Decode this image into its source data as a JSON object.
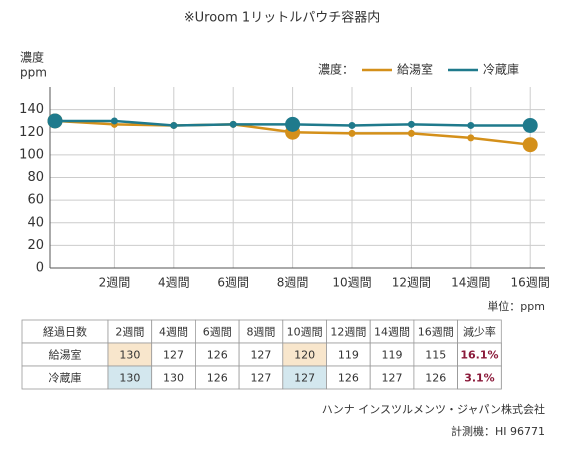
{
  "chart_data": {
    "type": "line",
    "title": "※Uroom 1リットルパウチ容器内",
    "y_label": [
      "濃度",
      "ppm"
    ],
    "legend_title": "濃度：",
    "categories": [
      null,
      "2週間",
      "4週間",
      "6週間",
      "8週間",
      "10週間",
      "12週間",
      "14週間",
      "16週間"
    ],
    "series": [
      {
        "name": "給湯室",
        "color": "#d4901a",
        "values": [
          130,
          127,
          126,
          127,
          120,
          119,
          119,
          115,
          109
        ],
        "reduction": "16.1%",
        "highlight_color": "#f8e6cc"
      },
      {
        "name": "冷蔵庫",
        "color": "#1f7a8c",
        "values": [
          130,
          130,
          126,
          127,
          127,
          126,
          127,
          126,
          126
        ],
        "reduction": "3.1%",
        "highlight_color": "#d3e7ee"
      }
    ],
    "highlight": [
      0,
      4,
      8
    ],
    "ylim": [
      0,
      160
    ],
    "yticks": [
      0,
      20,
      40,
      60,
      80,
      100,
      120,
      140
    ],
    "grid": true,
    "unit": "単位：ppm",
    "table": {
      "first_header": "経過日数",
      "last_header": "減少率",
      "reduction_color": "#8b1a3a"
    },
    "footer": [
      "ハンナ インスツルメンツ・ジャパン株式会社",
      "計測機：HI 96771"
    ]
  }
}
